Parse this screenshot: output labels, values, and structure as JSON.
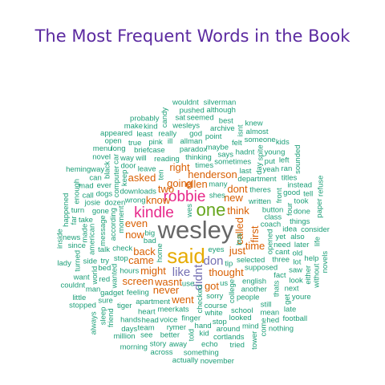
{
  "chart_data": {
    "type": "wordcloud",
    "title": "The Most Frequent Words in the Book",
    "tiers": [
      {
        "size": 1,
        "color": "#1b9e77"
      },
      {
        "size": 2,
        "color": "#d95f02"
      },
      {
        "size": 3,
        "color": "#7570b3"
      },
      {
        "size": 4,
        "color": "#e7298a"
      },
      {
        "size": 5,
        "color": "#66a61e"
      },
      {
        "size": 6,
        "color": "#e6ab02"
      },
      {
        "size": 7,
        "color": "#666666"
      }
    ],
    "words": [
      {
        "text": "wesley",
        "tier": 7
      },
      {
        "text": "said",
        "tier": 6
      },
      {
        "text": "one",
        "tier": 5
      },
      {
        "text": "robbie",
        "tier": 4
      },
      {
        "text": "kindle",
        "tier": 4
      },
      {
        "text": "don",
        "tier": 3
      },
      {
        "text": "like",
        "tier": 3
      },
      {
        "text": "didnt",
        "tier": 3
      },
      {
        "text": "back",
        "tier": 2
      },
      {
        "text": "know",
        "tier": 2
      },
      {
        "text": "thought",
        "tier": 2
      },
      {
        "text": "might",
        "tier": 2
      },
      {
        "text": "going",
        "tier": 2
      },
      {
        "text": "even",
        "tier": 2
      },
      {
        "text": "think",
        "tier": 2
      },
      {
        "text": "just",
        "tier": 2
      },
      {
        "text": "first",
        "tier": 2
      },
      {
        "text": "called",
        "tier": 2
      },
      {
        "text": "time",
        "tier": 2
      },
      {
        "text": "now",
        "tier": 2
      },
      {
        "text": "came",
        "tier": 2
      },
      {
        "text": "new",
        "tier": 2
      },
      {
        "text": "ellen",
        "tier": 2
      },
      {
        "text": "two",
        "tier": 2
      },
      {
        "text": "right",
        "tier": 2
      },
      {
        "text": "henderson",
        "tier": 2
      },
      {
        "text": "asked",
        "tier": 2
      },
      {
        "text": "screen",
        "tier": 2
      },
      {
        "text": "wasnt",
        "tier": 2
      },
      {
        "text": "got",
        "tier": 2
      },
      {
        "text": "never",
        "tier": 2
      },
      {
        "text": "went",
        "tier": 2
      },
      {
        "text": "dont",
        "tier": 2
      },
      {
        "text": "selected",
        "tier": 1
      },
      {
        "text": "college",
        "tier": 1
      },
      {
        "text": "wrong",
        "tier": 1
      },
      {
        "text": "checked",
        "tier": 1
      },
      {
        "text": "downloads",
        "tier": 1
      },
      {
        "text": "written",
        "tier": 1
      },
      {
        "text": "times",
        "tier": 1
      },
      {
        "text": "english",
        "tier": 1
      },
      {
        "text": "thinking",
        "tier": 1
      },
      {
        "text": "check",
        "tier": 1
      },
      {
        "text": "sometimes",
        "tier": 1
      },
      {
        "text": "theres",
        "tier": 1
      },
      {
        "text": "home",
        "tier": 1
      },
      {
        "text": "shes",
        "tier": 1
      },
      {
        "text": "department",
        "tier": 1
      },
      {
        "text": "apartment",
        "tier": 1
      },
      {
        "text": "supposed",
        "tier": 1
      },
      {
        "text": "sorry",
        "tier": 1
      },
      {
        "text": "coach",
        "tier": 1
      },
      {
        "text": "moment",
        "tier": 1
      },
      {
        "text": "meerkats",
        "tier": 1
      },
      {
        "text": "opened",
        "tier": 1
      },
      {
        "text": "course",
        "tier": 1
      },
      {
        "text": "stop",
        "tier": 1
      },
      {
        "text": "button",
        "tier": 1
      },
      {
        "text": "hours",
        "tier": 1
      },
      {
        "text": "wes",
        "tier": 1
      },
      {
        "text": "reading",
        "tier": 1
      },
      {
        "text": "according",
        "tier": 1
      },
      {
        "text": "feeling",
        "tier": 1
      },
      {
        "text": "leave",
        "tier": 1
      },
      {
        "text": "eyes",
        "tier": 1
      },
      {
        "text": "dozen",
        "tier": 1
      },
      {
        "text": "bad",
        "tier": 1
      },
      {
        "text": "another",
        "tier": 1
      },
      {
        "text": "paradox",
        "tier": 1
      },
      {
        "text": "white",
        "tier": 1
      },
      {
        "text": "big",
        "tier": 1
      },
      {
        "text": "last",
        "tier": 1
      },
      {
        "text": "people",
        "tier": 1
      },
      {
        "text": "says",
        "tier": 1
      },
      {
        "text": "finger",
        "tier": 1
      },
      {
        "text": "yet",
        "tier": 1
      },
      {
        "text": "need",
        "tier": 1
      },
      {
        "text": "talk",
        "tier": 1
      },
      {
        "text": "front",
        "tier": 1
      },
      {
        "text": "maybe",
        "tier": 1
      },
      {
        "text": "message",
        "tier": 1
      },
      {
        "text": "briefcase",
        "tier": 1
      },
      {
        "text": "cant",
        "tier": 1
      },
      {
        "text": "wanted",
        "tier": 1
      },
      {
        "text": "many",
        "tier": 1
      },
      {
        "text": "keep",
        "tier": 1
      },
      {
        "text": "class",
        "tier": 1
      },
      {
        "text": "school",
        "tier": 1
      },
      {
        "text": "voice",
        "tier": 1
      },
      {
        "text": "three",
        "tier": 1
      },
      {
        "text": "computer",
        "tier": 1
      },
      {
        "text": "door",
        "tier": 1
      },
      {
        "text": "heart",
        "tier": 1
      },
      {
        "text": "use",
        "tier": 1
      },
      {
        "text": "try",
        "tier": 1
      },
      {
        "text": "day",
        "tier": 1
      },
      {
        "text": "stop",
        "tier": 1
      },
      {
        "text": "will",
        "tier": 1
      },
      {
        "text": "allman",
        "tier": 1
      },
      {
        "text": "hadnt",
        "tier": 1
      },
      {
        "text": "fact",
        "tier": 1
      },
      {
        "text": "rymer",
        "tier": 1
      },
      {
        "text": "ten",
        "tier": 1
      },
      {
        "text": "gone",
        "tier": 1
      },
      {
        "text": "dogs",
        "tier": 1
      },
      {
        "text": "idea",
        "tier": 1
      },
      {
        "text": "tip",
        "tier": 1
      },
      {
        "text": "bus",
        "tier": 1
      },
      {
        "text": "thats",
        "tier": 1
      },
      {
        "text": "bed",
        "tier": 1
      },
      {
        "text": "four",
        "tier": 1
      },
      {
        "text": "hand",
        "tier": 1
      },
      {
        "text": "ill",
        "tier": 1
      },
      {
        "text": "looked",
        "tier": 1
      },
      {
        "text": "american",
        "tier": 1
      },
      {
        "text": "tiger",
        "tier": 1
      },
      {
        "text": "head",
        "tier": 1
      },
      {
        "text": "point",
        "tier": 1
      },
      {
        "text": "gadget",
        "tier": 1
      },
      {
        "text": "still",
        "tier": 1
      },
      {
        "text": "also",
        "tier": 1
      },
      {
        "text": "around",
        "tier": 1
      },
      {
        "text": "things",
        "tier": 1
      },
      {
        "text": "yeah",
        "tier": 1
      },
      {
        "text": "red",
        "tier": 1
      },
      {
        "text": "felt",
        "tier": 1
      },
      {
        "text": "good",
        "tier": 1
      },
      {
        "text": "put",
        "tier": 1
      },
      {
        "text": "really",
        "tier": 1
      },
      {
        "text": "spite",
        "tier": 1
      },
      {
        "text": "ever",
        "tier": 1
      },
      {
        "text": "pink",
        "tier": 1
      },
      {
        "text": "lot",
        "tier": 1
      },
      {
        "text": "kid",
        "tier": 1
      },
      {
        "text": "side",
        "tier": 1
      },
      {
        "text": "better",
        "tier": 1
      },
      {
        "text": "black",
        "tier": 1
      },
      {
        "text": "way",
        "tier": 1
      },
      {
        "text": "wesleys",
        "tier": 1
      },
      {
        "text": "hands",
        "tier": 1
      },
      {
        "text": "josie",
        "tier": 1
      },
      {
        "text": "saw",
        "tier": 1
      },
      {
        "text": "later",
        "tier": 1
      },
      {
        "text": "archive",
        "tier": 1
      },
      {
        "text": "world",
        "tier": 1
      },
      {
        "text": "take",
        "tier": 1
      },
      {
        "text": "took",
        "tier": 1
      },
      {
        "text": "titles",
        "tier": 1
      },
      {
        "text": "car",
        "tier": 1
      },
      {
        "text": "true",
        "tier": 1
      },
      {
        "text": "team",
        "tier": 1
      },
      {
        "text": "mind",
        "tier": 1
      },
      {
        "text": "cortlands",
        "tier": 1
      },
      {
        "text": "made",
        "tier": 1
      },
      {
        "text": "done",
        "tier": 1
      },
      {
        "text": "call",
        "tier": 1
      },
      {
        "text": "least",
        "tier": 1
      },
      {
        "text": "old",
        "tier": 1
      },
      {
        "text": "look",
        "tier": 1
      },
      {
        "text": "sure",
        "tier": 1
      },
      {
        "text": "someone",
        "tier": 1
      },
      {
        "text": "mean",
        "tier": 1
      },
      {
        "text": "told",
        "tier": 1
      },
      {
        "text": "turned",
        "tier": 1
      },
      {
        "text": "long",
        "tier": 1
      },
      {
        "text": "man",
        "tier": 1
      },
      {
        "text": "god",
        "tier": 1
      },
      {
        "text": "ran",
        "tier": 1
      },
      {
        "text": "away",
        "tier": 1
      },
      {
        "text": "next",
        "tier": 1
      },
      {
        "text": "get",
        "tier": 1
      },
      {
        "text": "echo",
        "tier": 1
      },
      {
        "text": "mad",
        "tier": 1
      },
      {
        "text": "kind",
        "tier": 1
      },
      {
        "text": "far",
        "tier": 1
      },
      {
        "text": "seemed",
        "tier": 1
      },
      {
        "text": "can",
        "tier": 1
      },
      {
        "text": "days",
        "tier": 1
      },
      {
        "text": "isnt",
        "tier": 1
      },
      {
        "text": "instead",
        "tier": 1
      },
      {
        "text": "consider",
        "tier": 1
      },
      {
        "text": "young",
        "tier": 1
      },
      {
        "text": "see",
        "tier": 1
      },
      {
        "text": "hed",
        "tier": 1
      },
      {
        "text": "turn",
        "tier": 1
      },
      {
        "text": "friend",
        "tier": 1
      },
      {
        "text": "want",
        "tier": 1
      },
      {
        "text": "story",
        "tier": 1
      },
      {
        "text": "best",
        "tier": 1
      },
      {
        "text": "left",
        "tier": 1
      },
      {
        "text": "news",
        "tier": 1
      },
      {
        "text": "help",
        "tier": 1
      },
      {
        "text": "sat",
        "tier": 1
      },
      {
        "text": "something",
        "tier": 1
      },
      {
        "text": "almost",
        "tier": 1
      },
      {
        "text": "either",
        "tier": 1
      },
      {
        "text": "tried",
        "tier": 1
      },
      {
        "text": "probably",
        "tier": 1
      },
      {
        "text": "come",
        "tier": 1
      },
      {
        "text": "hemingway",
        "tier": 1
      },
      {
        "text": "tell",
        "tier": 1
      },
      {
        "text": "open",
        "tier": 1
      },
      {
        "text": "pushed",
        "tier": 1
      },
      {
        "text": "since",
        "tier": 1
      },
      {
        "text": "although",
        "tier": 1
      },
      {
        "text": "enough",
        "tier": 1
      },
      {
        "text": "youre",
        "tier": 1
      },
      {
        "text": "across",
        "tier": 1
      },
      {
        "text": "appeared",
        "tier": 1
      },
      {
        "text": "late",
        "tier": 1
      },
      {
        "text": "novel",
        "tier": 1
      },
      {
        "text": "candy",
        "tier": 1
      },
      {
        "text": "life",
        "tier": 1
      },
      {
        "text": "sounded",
        "tier": 1
      },
      {
        "text": "million",
        "tier": 1
      },
      {
        "text": "actually",
        "tier": 1
      },
      {
        "text": "sleep",
        "tier": 1
      },
      {
        "text": "tower",
        "tier": 1
      },
      {
        "text": "paper",
        "tier": 1
      },
      {
        "text": "happened",
        "tier": 1
      },
      {
        "text": "without",
        "tier": 1
      },
      {
        "text": "menu",
        "tier": 1
      },
      {
        "text": "knew",
        "tier": 1
      },
      {
        "text": "couldnt",
        "tier": 1
      },
      {
        "text": "football",
        "tier": 1
      },
      {
        "text": "stopped",
        "tier": 1
      },
      {
        "text": "lady",
        "tier": 1
      },
      {
        "text": "nothing",
        "tier": 1
      },
      {
        "text": "make",
        "tier": 1
      },
      {
        "text": "novels",
        "tier": 1
      },
      {
        "text": "kids",
        "tier": 1
      },
      {
        "text": "wouldnt",
        "tier": 1
      },
      {
        "text": "morning",
        "tier": 1
      },
      {
        "text": "refuse",
        "tier": 1
      },
      {
        "text": "november",
        "tier": 1
      },
      {
        "text": "silverman",
        "tier": 1
      },
      {
        "text": "inside",
        "tier": 1
      },
      {
        "text": "little",
        "tier": 1
      },
      {
        "text": "always",
        "tier": 1
      },
      {
        "text": "us",
        "tier": 1
      }
    ]
  }
}
